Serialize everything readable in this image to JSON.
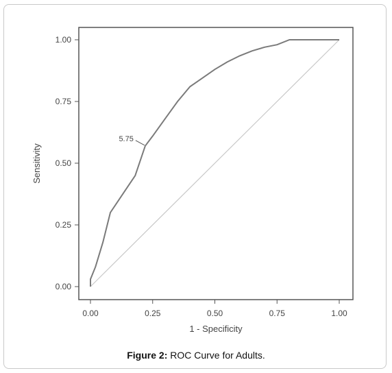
{
  "caption": {
    "label": "Figure 2:",
    "text": "ROC Curve for Adults."
  },
  "chart_data": {
    "type": "line",
    "title": "",
    "xlabel": "1 - Specificity",
    "ylabel": "Sensitivity",
    "xlim": [
      0,
      1
    ],
    "ylim": [
      0,
      1
    ],
    "xticks": [
      "0.00",
      "0.25",
      "0.50",
      "0.75",
      "1.00"
    ],
    "yticks": [
      "0.00",
      "0.25",
      "0.50",
      "0.75",
      "1.00"
    ],
    "grid": false,
    "colors": {
      "curve": "#7a7a7a",
      "reference": "#c8c8c8",
      "axis": "#555555",
      "text": "#444444"
    },
    "series": [
      {
        "role": "roc-curve",
        "x": [
          0.0,
          0.0,
          0.02,
          0.05,
          0.08,
          0.1,
          0.14,
          0.18,
          0.22,
          0.25,
          0.3,
          0.35,
          0.4,
          0.45,
          0.5,
          0.55,
          0.6,
          0.65,
          0.7,
          0.75,
          0.8,
          0.85,
          0.9,
          0.95,
          1.0
        ],
        "y": [
          0.0,
          0.03,
          0.08,
          0.18,
          0.3,
          0.33,
          0.39,
          0.45,
          0.57,
          0.61,
          0.68,
          0.75,
          0.81,
          0.845,
          0.88,
          0.91,
          0.935,
          0.955,
          0.97,
          0.98,
          1.0,
          1.0,
          1.0,
          1.0,
          1.0
        ]
      },
      {
        "role": "reference-diagonal",
        "x": [
          0,
          1
        ],
        "y": [
          0,
          1
        ]
      }
    ],
    "annotations": [
      {
        "text": "5.75",
        "x": 0.22,
        "y": 0.57
      }
    ]
  }
}
